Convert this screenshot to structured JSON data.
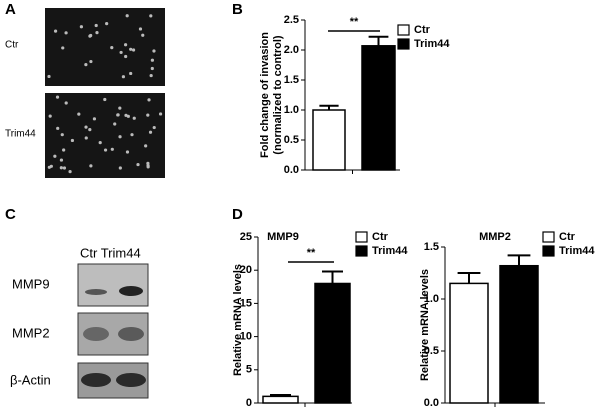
{
  "panels": {
    "A": {
      "label": "A",
      "rows": [
        "Ctr",
        "Trim44"
      ]
    },
    "C": {
      "label": "C",
      "header": "Ctr Trim44",
      "rows": [
        "MMP9",
        "MMP2",
        "β-Actin"
      ]
    }
  },
  "chart_data": [
    {
      "type": "bar",
      "panel_label": "B",
      "y_label": [
        "Fold change of invasion",
        "(normalized to control)"
      ],
      "annotation": "**",
      "series": [
        {
          "name": "Ctr",
          "color": "#ffffff",
          "values": [
            1.0
          ],
          "errors": [
            0.07
          ]
        },
        {
          "name": "Trim44",
          "color": "#000000",
          "values": [
            2.07
          ],
          "errors": [
            0.15
          ]
        }
      ],
      "ylim": [
        0,
        2.5
      ],
      "yticks": [
        {
          "value": 0,
          "label": "0.0"
        },
        0.5,
        {
          "value": 1,
          "label": "1.0"
        },
        {
          "value": 1.5,
          "label": "1.5"
        },
        {
          "value": 2,
          "label": "2.0"
        },
        {
          "value": 2.5,
          "label": "2.5"
        }
      ]
    },
    {
      "type": "bar",
      "panel_label": "D",
      "title": "MMP9",
      "y_label": [
        "Relative mRNA levels"
      ],
      "annotation": "**",
      "series": [
        {
          "name": "Ctr",
          "color": "#ffffff",
          "values": [
            1.0
          ],
          "errors": [
            0.2
          ]
        },
        {
          "name": "Trim44",
          "color": "#000000",
          "values": [
            18
          ],
          "errors": [
            1.8
          ]
        }
      ],
      "ylim": [
        0,
        25
      ],
      "yticks": [
        0,
        5,
        10,
        15,
        20,
        25
      ]
    },
    {
      "type": "bar",
      "title": "MMP2",
      "y_label": [
        "Relative mRNA levels"
      ],
      "series": [
        {
          "name": "Ctr",
          "color": "#ffffff",
          "values": [
            1.15
          ],
          "errors": [
            0.1
          ]
        },
        {
          "name": "Trim44",
          "color": "#000000",
          "values": [
            1.32
          ],
          "errors": [
            0.1
          ]
        }
      ],
      "ylim": [
        0,
        1.5
      ],
      "yticks": [
        {
          "value": 0,
          "label": "0.0"
        },
        0.5,
        {
          "value": 1,
          "label": "1.0"
        },
        {
          "value": 1.5,
          "label": "1.5"
        }
      ]
    }
  ]
}
